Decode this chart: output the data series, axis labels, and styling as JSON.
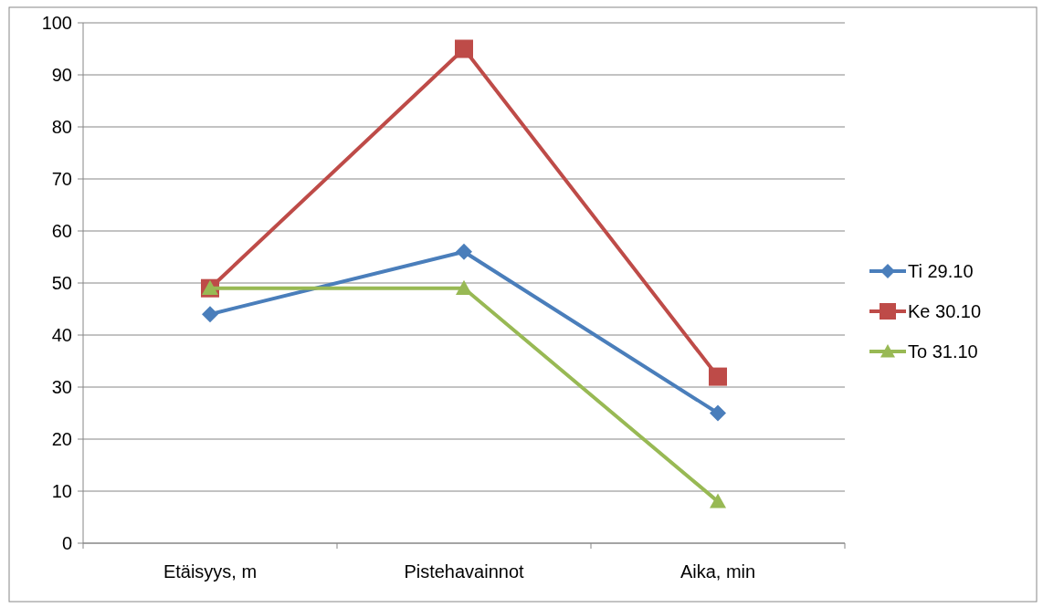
{
  "chart_data": {
    "type": "line",
    "categories": [
      "Etäisyys, m",
      "Pistehavainnot",
      "Aika, min"
    ],
    "series": [
      {
        "name": "Ti 29.10",
        "color": "#4a7ebb",
        "marker": "diamond",
        "values": [
          44,
          56,
          25
        ]
      },
      {
        "name": "Ke 30.10",
        "color": "#be4b48",
        "marker": "square",
        "values": [
          49,
          95,
          32
        ]
      },
      {
        "name": "To 31.10",
        "color": "#98b954",
        "marker": "triangle",
        "values": [
          49,
          49,
          8
        ]
      }
    ],
    "ylim": [
      0,
      100
    ],
    "yticks": [
      0,
      10,
      20,
      30,
      40,
      50,
      60,
      70,
      80,
      90,
      100
    ],
    "grid": "y",
    "legend": "right"
  }
}
